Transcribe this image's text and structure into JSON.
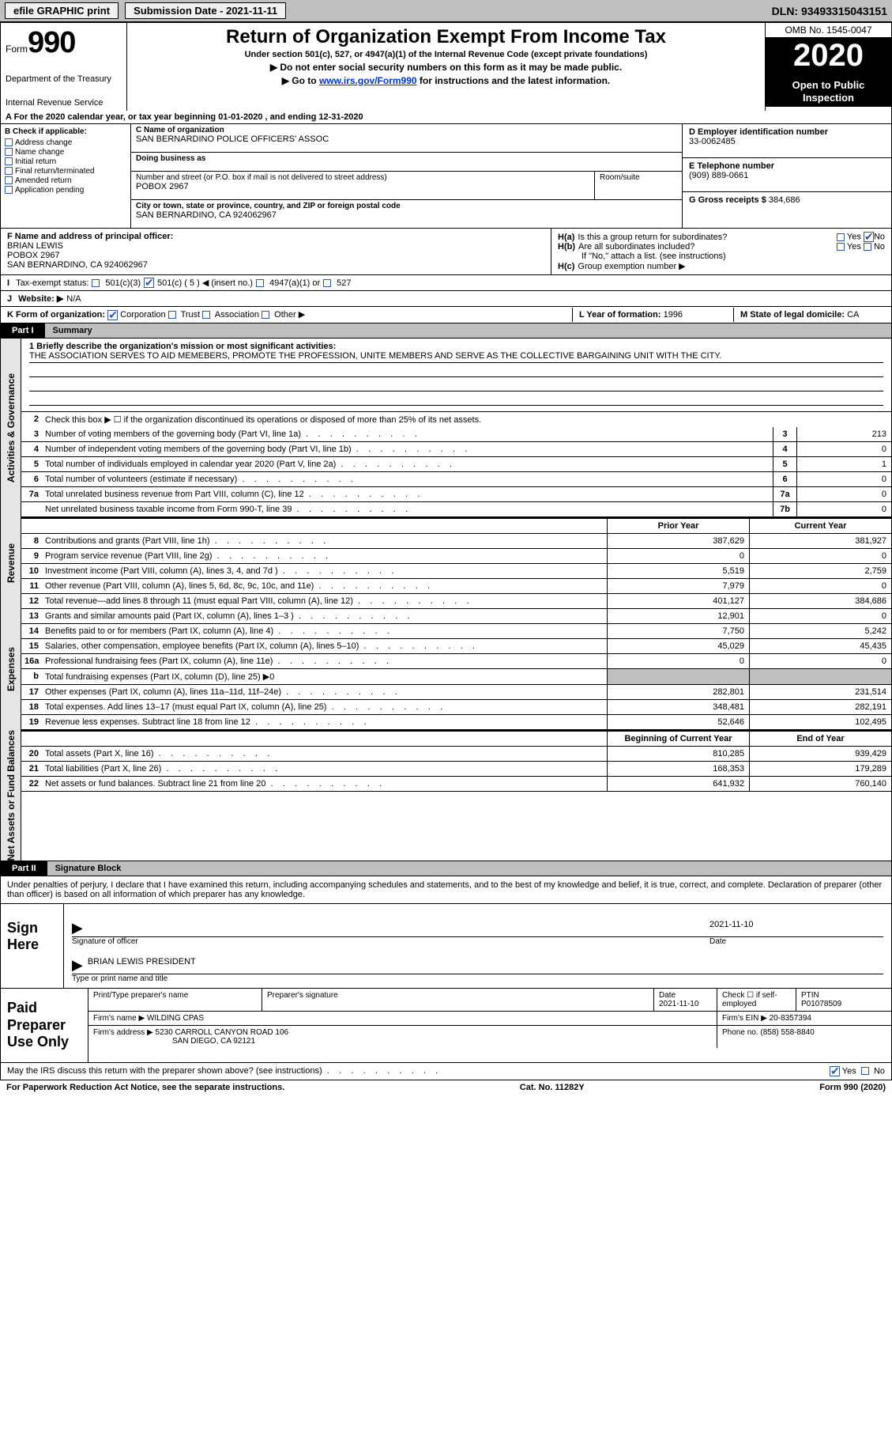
{
  "topbar": {
    "efile": "efile GRAPHIC print",
    "sub_date_label": "Submission Date - 2021-11-11",
    "dln": "DLN: 93493315043151"
  },
  "header": {
    "form_word": "Form",
    "form_no": "990",
    "title": "Return of Organization Exempt From Income Tax",
    "subtitle": "Under section 501(c), 527, or 4947(a)(1) of the Internal Revenue Code (except private foundations)",
    "note1": "▶ Do not enter social security numbers on this form as it may be made public.",
    "note2_pre": "▶ Go to ",
    "note2_link": "www.irs.gov/Form990",
    "note2_post": " for instructions and the latest information.",
    "dept": "Department of the Treasury",
    "irs": "Internal Revenue Service",
    "omb": "OMB No. 1545-0047",
    "year": "2020",
    "open": "Open to Public Inspection"
  },
  "period": "A For the 2020 calendar year, or tax year beginning 01-01-2020    , and ending 12-31-2020",
  "sectionB": {
    "hdr": "B Check if applicable:",
    "items": [
      "Address change",
      "Name change",
      "Initial return",
      "Final return/terminated",
      "Amended return",
      "Application pending"
    ]
  },
  "sectionC": {
    "name_lab": "C Name of organization",
    "name": "SAN BERNARDINO POLICE OFFICERS' ASSOC",
    "dba_lab": "Doing business as",
    "addr_lab": "Number and street (or P.O. box if mail is not delivered to street address)",
    "room_lab": "Room/suite",
    "addr": "POBOX 2967",
    "city_lab": "City or town, state or province, country, and ZIP or foreign postal code",
    "city": "SAN BERNARDINO, CA  924062967"
  },
  "sectionD": {
    "lab": "D Employer identification number",
    "val": "33-0062485"
  },
  "sectionE": {
    "lab": "E Telephone number",
    "val": "(909) 889-0661"
  },
  "sectionG": {
    "lab": "G Gross receipts $",
    "val": "384,686"
  },
  "sectionF": {
    "lab": "F Name and address of principal officer:",
    "name": "BRIAN LEWIS",
    "addr1": "POBOX 2967",
    "addr2": "SAN BERNARDINO, CA  924062967"
  },
  "sectionH": {
    "a": "Is this a group return for subordinates?",
    "b": "Are all subordinates included?",
    "bnote": "If \"No,\" attach a list. (see instructions)",
    "c": "Group exemption number ▶",
    "ha": "H(a)",
    "hb": "H(b)",
    "hc": "H(c)",
    "yes": "Yes",
    "no": "No"
  },
  "sectionI": {
    "lab": "Tax-exempt status:",
    "o1": "501(c)(3)",
    "o2": "501(c) ( 5 ) ◀ (insert no.)",
    "o3": "4947(a)(1) or",
    "o4": "527"
  },
  "sectionJ": {
    "lab": "Website: ▶",
    "val": "N/A"
  },
  "sectionK": {
    "lab": "K Form of organization:",
    "o1": "Corporation",
    "o2": "Trust",
    "o3": "Association",
    "o4": "Other ▶"
  },
  "sectionL": {
    "lab": "L Year of formation:",
    "val": "1996"
  },
  "sectionM": {
    "lab": "M State of legal domicile:",
    "val": "CA"
  },
  "part1": {
    "tag": "Part I",
    "title": "Summary"
  },
  "vtabs": {
    "gov": "Activities & Governance",
    "rev": "Revenue",
    "exp": "Expenses",
    "net": "Net Assets or Fund Balances"
  },
  "p1_desc": {
    "lab": "1  Briefly describe the organization's mission or most significant activities:",
    "text": "THE ASSOCIATION SERVES TO AID MEMEBERS, PROMOTE THE PROFESSION, UNITE MEMBERS AND SERVE AS THE COLLECTIVE BARGAINING UNIT WITH THE CITY."
  },
  "p1_rows": [
    {
      "n": "2",
      "txt": "Check this box ▶ ☐  if the organization discontinued its operations or disposed of more than 25% of its net assets."
    },
    {
      "n": "3",
      "txt": "Number of voting members of the governing body (Part VI, line 1a)",
      "box": "3",
      "val": "213"
    },
    {
      "n": "4",
      "txt": "Number of independent voting members of the governing body (Part VI, line 1b)",
      "box": "4",
      "val": "0"
    },
    {
      "n": "5",
      "txt": "Total number of individuals employed in calendar year 2020 (Part V, line 2a)",
      "box": "5",
      "val": "1"
    },
    {
      "n": "6",
      "txt": "Total number of volunteers (estimate if necessary)",
      "box": "6",
      "val": "0"
    },
    {
      "n": "7a",
      "txt": "Total unrelated business revenue from Part VIII, column (C), line 12",
      "box": "7a",
      "val": "0"
    },
    {
      "n": "",
      "txt": "Net unrelated business taxable income from Form 990-T, line 39",
      "box": "7b",
      "val": "0"
    }
  ],
  "fin_cols": {
    "prior": "Prior Year",
    "current": "Current Year"
  },
  "revenue_rows": [
    {
      "n": "8",
      "txt": "Contributions and grants (Part VIII, line 1h)",
      "c1": "387,629",
      "c2": "381,927"
    },
    {
      "n": "9",
      "txt": "Program service revenue (Part VIII, line 2g)",
      "c1": "0",
      "c2": "0"
    },
    {
      "n": "10",
      "txt": "Investment income (Part VIII, column (A), lines 3, 4, and 7d )",
      "c1": "5,519",
      "c2": "2,759"
    },
    {
      "n": "11",
      "txt": "Other revenue (Part VIII, column (A), lines 5, 6d, 8c, 9c, 10c, and 11e)",
      "c1": "7,979",
      "c2": "0"
    },
    {
      "n": "12",
      "txt": "Total revenue—add lines 8 through 11 (must equal Part VIII, column (A), line 12)",
      "c1": "401,127",
      "c2": "384,686"
    }
  ],
  "expense_rows": [
    {
      "n": "13",
      "txt": "Grants and similar amounts paid (Part IX, column (A), lines 1–3 )",
      "c1": "12,901",
      "c2": "0"
    },
    {
      "n": "14",
      "txt": "Benefits paid to or for members (Part IX, column (A), line 4)",
      "c1": "7,750",
      "c2": "5,242"
    },
    {
      "n": "15",
      "txt": "Salaries, other compensation, employee benefits (Part IX, column (A), lines 5–10)",
      "c1": "45,029",
      "c2": "45,435"
    },
    {
      "n": "16a",
      "txt": "Professional fundraising fees (Part IX, column (A), line 11e)",
      "c1": "0",
      "c2": "0"
    },
    {
      "n": "b",
      "txt": "Total fundraising expenses (Part IX, column (D), line 25) ▶0",
      "shade": true
    },
    {
      "n": "17",
      "txt": "Other expenses (Part IX, column (A), lines 11a–11d, 11f–24e)",
      "c1": "282,801",
      "c2": "231,514"
    },
    {
      "n": "18",
      "txt": "Total expenses. Add lines 13–17 (must equal Part IX, column (A), line 25)",
      "c1": "348,481",
      "c2": "282,191"
    },
    {
      "n": "19",
      "txt": "Revenue less expenses. Subtract line 18 from line 12",
      "c1": "52,646",
      "c2": "102,495"
    }
  ],
  "net_cols": {
    "beg": "Beginning of Current Year",
    "end": "End of Year"
  },
  "net_rows": [
    {
      "n": "20",
      "txt": "Total assets (Part X, line 16)",
      "c1": "810,285",
      "c2": "939,429"
    },
    {
      "n": "21",
      "txt": "Total liabilities (Part X, line 26)",
      "c1": "168,353",
      "c2": "179,289"
    },
    {
      "n": "22",
      "txt": "Net assets or fund balances. Subtract line 21 from line 20",
      "c1": "641,932",
      "c2": "760,140"
    }
  ],
  "part2": {
    "tag": "Part II",
    "title": "Signature Block"
  },
  "penalty": "Under penalties of perjury, I declare that I have examined this return, including accompanying schedules and statements, and to the best of my knowledge and belief, it is true, correct, and complete. Declaration of preparer (other than officer) is based on all information of which preparer has any knowledge.",
  "sign": {
    "label": "Sign Here",
    "sig_of": "Signature of officer",
    "date": "Date",
    "date_val": "2021-11-10",
    "name": "BRIAN LEWIS PRESIDENT",
    "type_lab": "Type or print name and title"
  },
  "prep": {
    "label": "Paid Preparer Use Only",
    "h1": "Print/Type preparer's name",
    "h2": "Preparer's signature",
    "h3": "Date",
    "h3v": "2021-11-10",
    "h4": "Check ☐ if self-employed",
    "h5": "PTIN",
    "h5v": "P01078509",
    "firm_lab": "Firm's name    ▶",
    "firm": "WILDING CPAS",
    "ein_lab": "Firm's EIN ▶",
    "ein": "20-8357394",
    "addr_lab": "Firm's address ▶",
    "addr1": "5230 CARROLL CANYON ROAD 106",
    "addr2": "SAN DIEGO, CA  92121",
    "phone_lab": "Phone no.",
    "phone": "(858) 558-8840"
  },
  "discuss": {
    "q": "May the IRS discuss this return with the preparer shown above? (see instructions)",
    "yes": "Yes",
    "no": "No"
  },
  "footer": {
    "left": "For Paperwork Reduction Act Notice, see the separate instructions.",
    "mid": "Cat. No. 11282Y",
    "right": "Form 990 (2020)"
  }
}
